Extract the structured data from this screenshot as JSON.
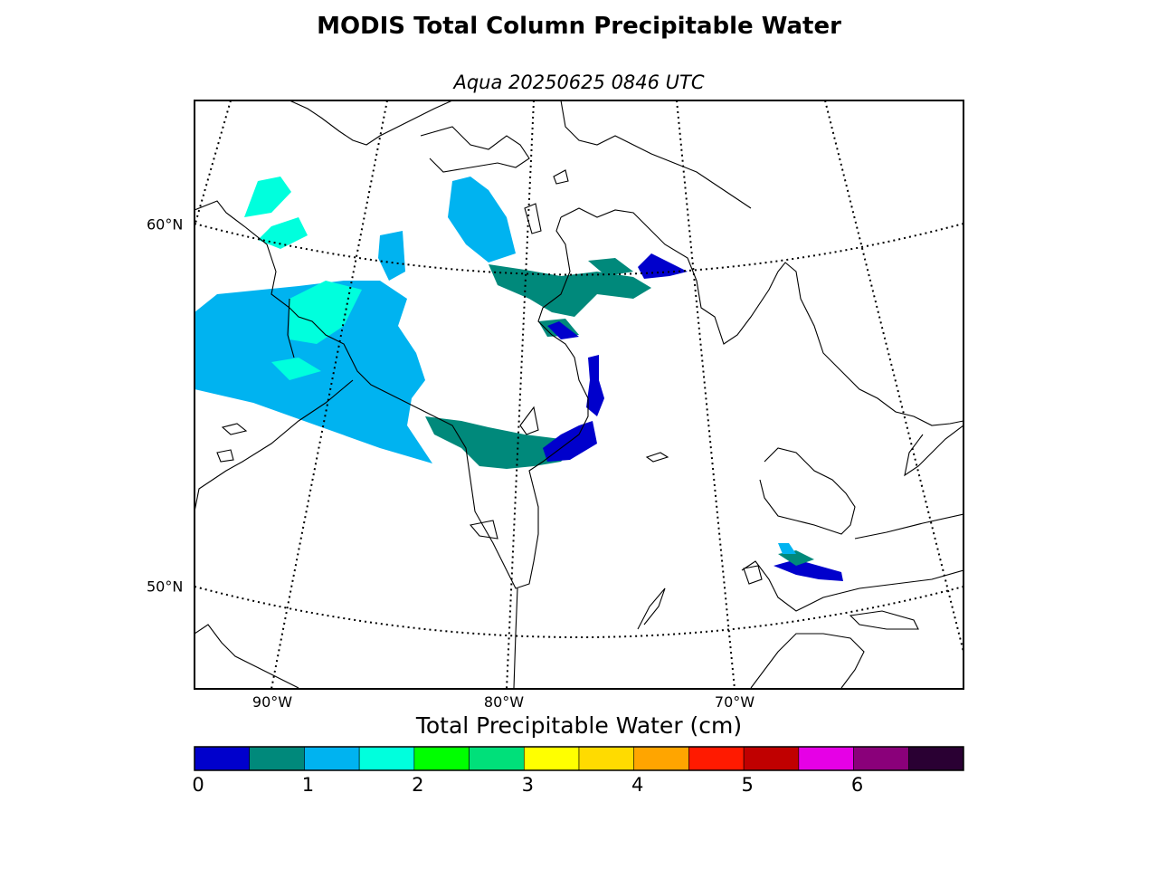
{
  "title": "MODIS Total Column Precipitable Water",
  "subtitle": "Aqua 20250625 0846 UTC",
  "colorbar": {
    "title": "Total Precipitable Water (cm)",
    "min": 0,
    "max": 7,
    "step": 0.5,
    "tick_labels": [
      "0",
      "1",
      "2",
      "3",
      "4",
      "5",
      "6"
    ],
    "tick_values": [
      0,
      1,
      2,
      3,
      4,
      5,
      6
    ],
    "colors": [
      "#0000cc",
      "#00897b",
      "#00b3f0",
      "#00ffdd",
      "#00ff00",
      "#00e07a",
      "#ffff00",
      "#ffdb00",
      "#ffa500",
      "#ff1a00",
      "#c00000",
      "#e600e6",
      "#8a007a",
      "#2a0033"
    ]
  },
  "map": {
    "lat_labels": [
      {
        "text": "60°N",
        "lat": 60
      },
      {
        "text": "50°N",
        "lat": 50
      }
    ],
    "lon_labels": [
      {
        "text": "90°W",
        "lon": -90
      },
      {
        "text": "80°W",
        "lon": -80
      },
      {
        "text": "70°W",
        "lon": -70
      }
    ]
  }
}
